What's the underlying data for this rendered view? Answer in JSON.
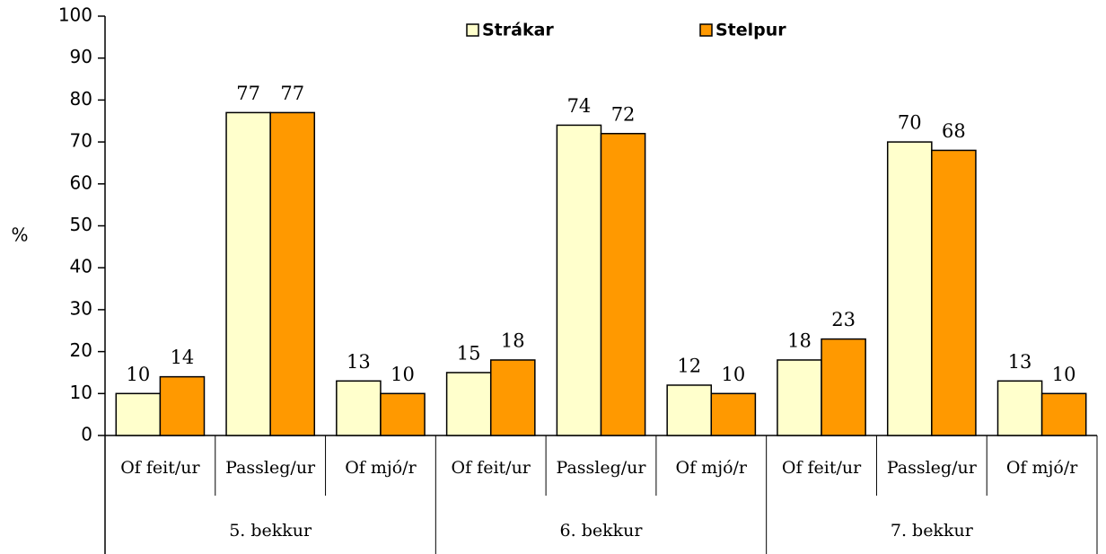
{
  "chart_data": {
    "type": "bar",
    "y_label": "%",
    "categories": [
      "Of feit/ur",
      "Passleg/ur",
      "Of mjó/r",
      "Of feit/ur",
      "Passleg/ur",
      "Of mjó/r",
      "Of feit/ur",
      "Passleg/ur",
      "Of mjó/r"
    ],
    "groups": [
      "5. bekkur",
      "6. bekkur",
      "7. bekkur"
    ],
    "series": [
      {
        "name": "Strákar",
        "color": "#ffffcc",
        "values": [
          10,
          77,
          13,
          15,
          74,
          12,
          18,
          70,
          13
        ]
      },
      {
        "name": "Stelpur",
        "color": "#ff9900",
        "values": [
          14,
          77,
          10,
          18,
          72,
          10,
          23,
          68,
          10
        ]
      }
    ],
    "ylim": [
      0,
      100
    ],
    "yticks": [
      0,
      10,
      20,
      30,
      40,
      50,
      60,
      70,
      80,
      90,
      100
    ],
    "legend": "top"
  }
}
